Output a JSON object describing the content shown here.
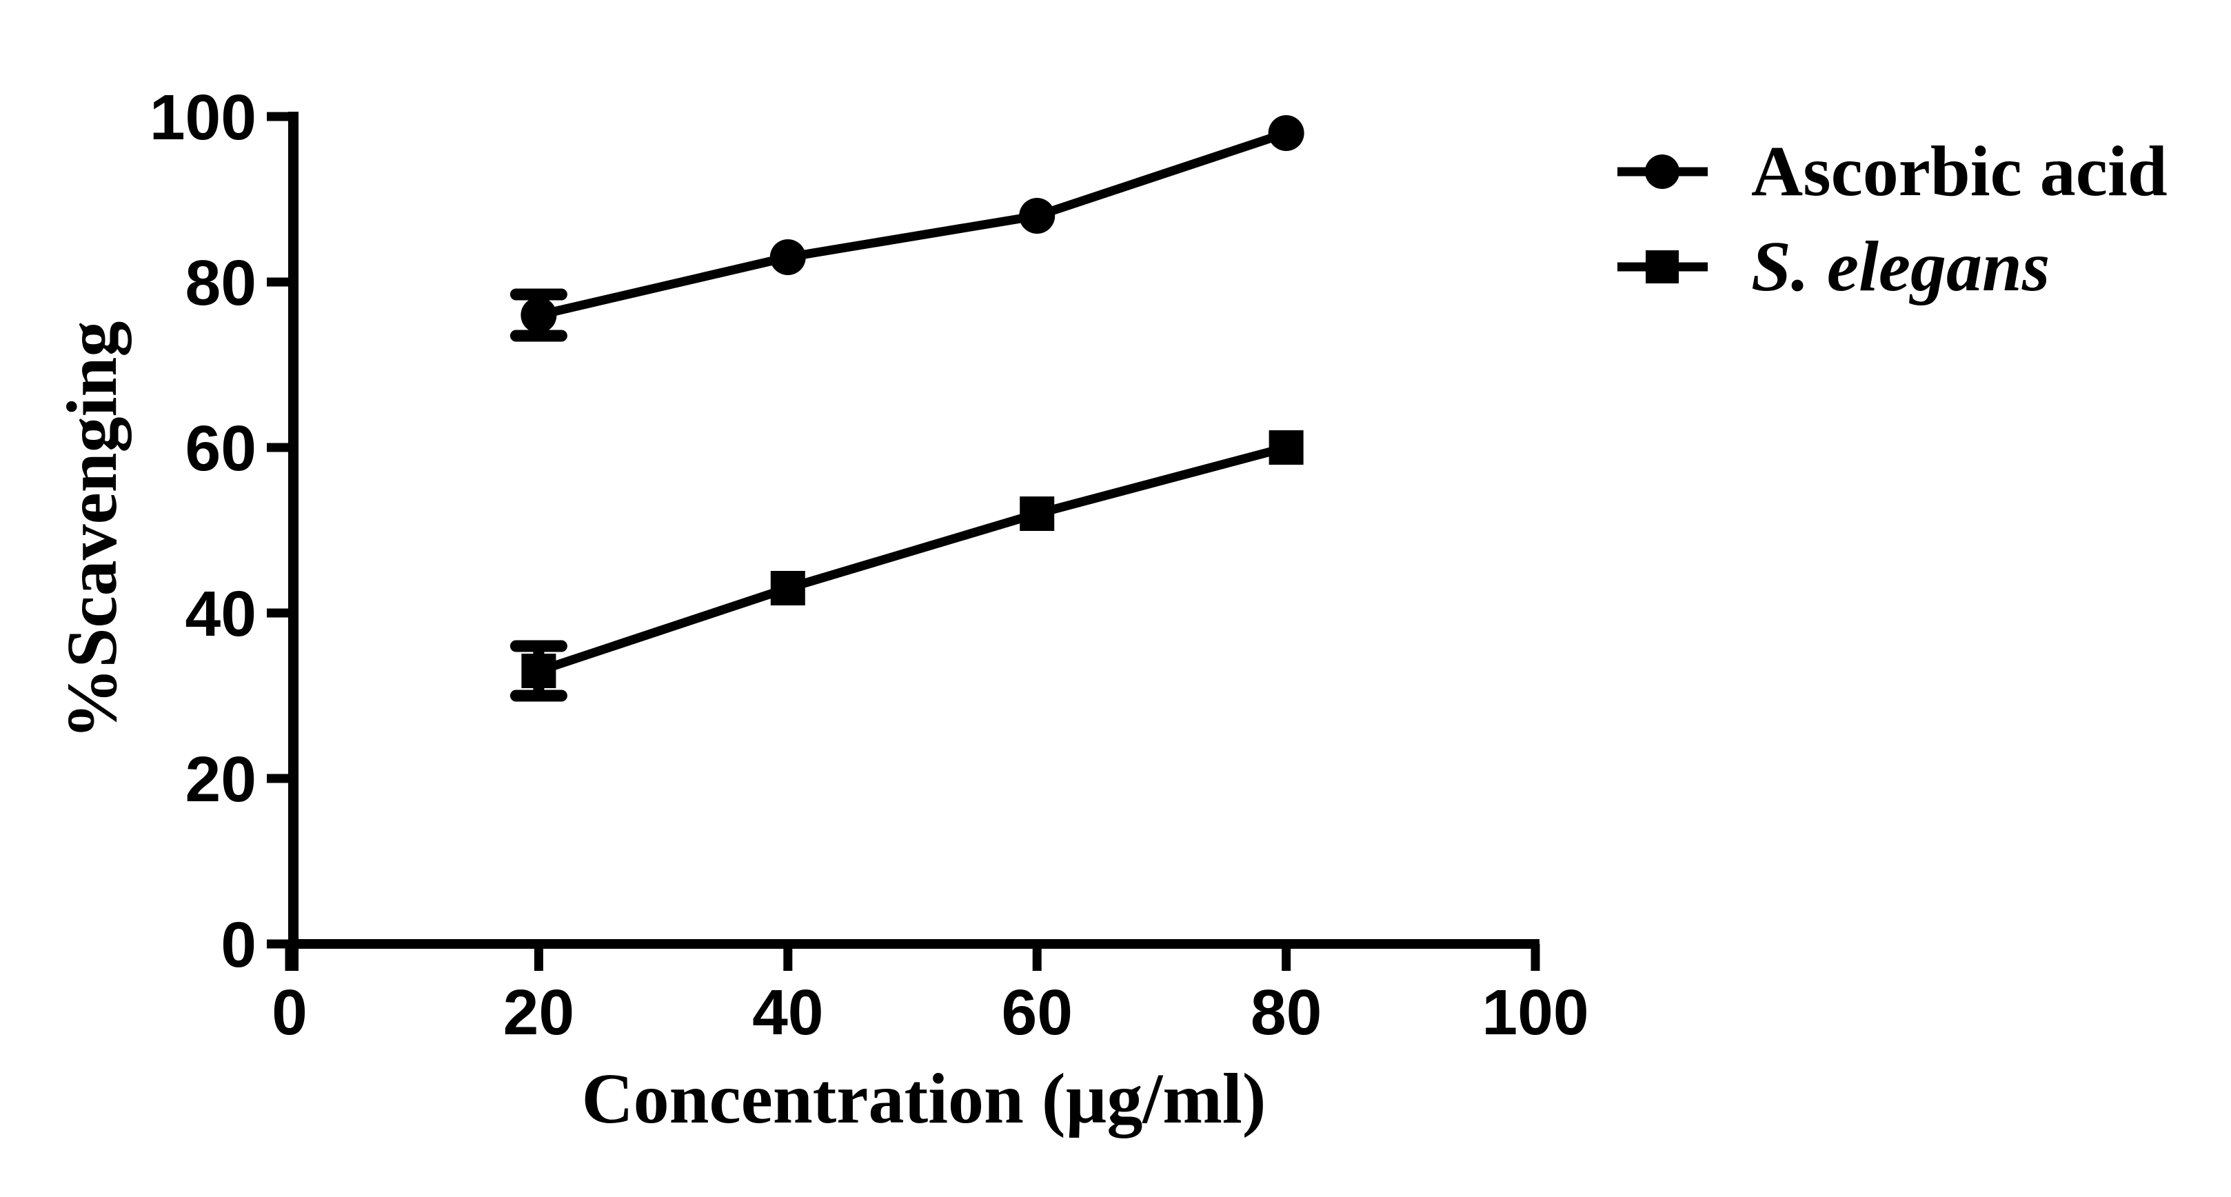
{
  "figure": {
    "background": "#ffffff",
    "ink": "#000000"
  },
  "chart_data": {
    "type": "line",
    "title": "",
    "xlabel": "Concentration (µg/ml)",
    "ylabel": "%Scavenging",
    "xlim": [
      0,
      100
    ],
    "ylim": [
      0,
      100
    ],
    "xticks": [
      0,
      20,
      40,
      60,
      80,
      100
    ],
    "yticks": [
      0,
      20,
      40,
      60,
      80,
      100
    ],
    "grid": false,
    "legend_position": "top-right",
    "x": [
      20,
      40,
      60,
      80
    ],
    "series": [
      {
        "name": "Ascorbic acid",
        "marker": "circle",
        "italic": false,
        "values": [
          76,
          83,
          88,
          98
        ],
        "errors": [
          2.5,
          0,
          0,
          0
        ]
      },
      {
        "name": "S. elegans",
        "marker": "square",
        "italic": true,
        "values": [
          33,
          43,
          52,
          60
        ],
        "errors": [
          3,
          0,
          0,
          0
        ]
      }
    ]
  }
}
